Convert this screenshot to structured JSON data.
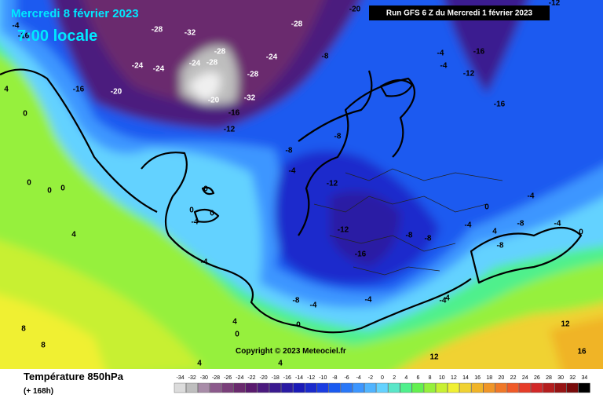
{
  "header": {
    "date": "Mercredi 8 février 2023",
    "time": "7:00 locale",
    "run": "Run GFS 6 Z du Mercredi 1 février 2023"
  },
  "footer": {
    "title": "Température 850hPa",
    "lead": "(+ 168h)",
    "copyright": "Copyright © 2023 Meteociel.fr"
  },
  "legend": {
    "values": [
      -34,
      -32,
      -30,
      -28,
      -26,
      -24,
      -22,
      -20,
      -18,
      -16,
      -14,
      -12,
      -10,
      -8,
      -6,
      -4,
      -2,
      0,
      2,
      4,
      6,
      8,
      10,
      12,
      14,
      16,
      18,
      20,
      22,
      24,
      26,
      28,
      30,
      32,
      34
    ],
    "colors": [
      "#dcdcdc",
      "#bebebe",
      "#a88ca8",
      "#8c5a8c",
      "#7a3f7a",
      "#6a2a6e",
      "#5a1a6e",
      "#4b1a7e",
      "#3a1a90",
      "#2a1aa4",
      "#1a1ab8",
      "#1a2acc",
      "#1a3ce2",
      "#1a5af0",
      "#2a78f8",
      "#3c96ff",
      "#50b4ff",
      "#64d2ff",
      "#5ae6c8",
      "#50f08c",
      "#64f050",
      "#96f03c",
      "#c8f032",
      "#f0f032",
      "#f0d232",
      "#f0b428",
      "#f09628",
      "#f07828",
      "#f05a28",
      "#e63c28",
      "#d22828",
      "#b41e1e",
      "#961414",
      "#780a0a",
      "#000000"
    ]
  },
  "contour_labels": [
    -28,
    -32,
    -28,
    -24,
    -24,
    -24,
    -28,
    -28,
    -32,
    -20,
    -16,
    -20,
    -16,
    -12,
    -24,
    -28,
    -8,
    -16,
    -12,
    -16,
    -4,
    -4,
    -8,
    -4,
    -8,
    -12,
    -12,
    -8,
    -8,
    -16,
    -8,
    -4,
    -4,
    0,
    -4,
    -4,
    0,
    0,
    -4,
    0,
    4,
    0,
    0,
    0,
    0,
    4,
    8,
    8,
    4,
    4,
    12,
    12,
    16,
    4,
    0,
    -8,
    -4,
    0,
    -4,
    0,
    4,
    -4,
    -8,
    4,
    -20,
    -16,
    -4,
    -12
  ]
}
